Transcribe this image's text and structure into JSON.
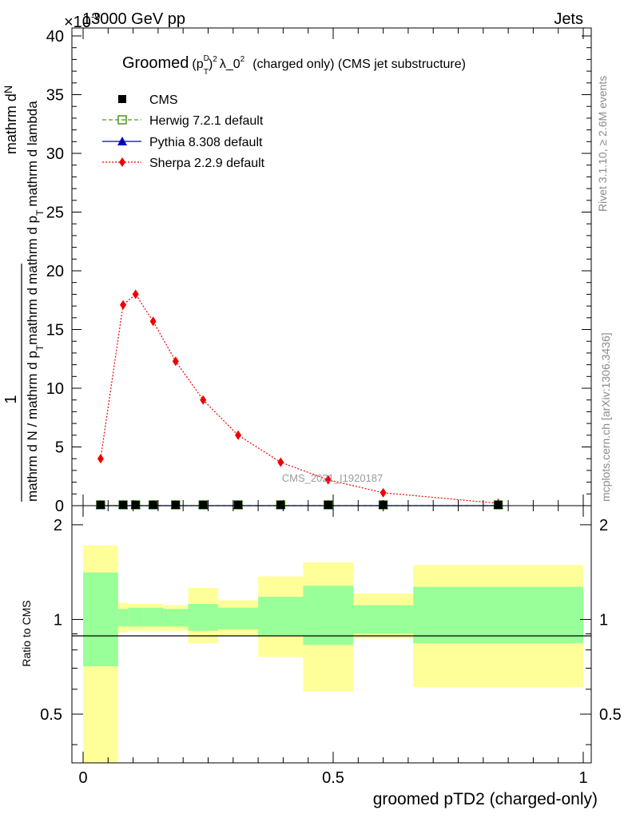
{
  "header": {
    "left": "13000 GeV pp",
    "right": "Jets"
  },
  "side_labels": {
    "rivet": "Rivet 3.1.10, ≥ 2.6M events",
    "mcplots": "mcplots.cern.ch [arXiv:1306.3436]"
  },
  "watermark": "CMS_2021_I1920187",
  "top_panel": {
    "title": "Groomed",
    "title_formula": "λ_0",
    "title_suffix": "(charged only) (CMS jet substructure)",
    "ylabel_numerator_1": "1",
    "ylabel_numerator_2": "mathrm d",
    "ylabel_numerator_N": "N",
    "ylabel_den_1": "mathrm d N / mathrm d p",
    "ylabel_den_2": "mathrm d p",
    "ylabel_den_3": "mathrm d lambda",
    "ylabel_den_sub": "T",
    "ylabel_den_mid": "mathrm d",
    "y_multiplier": "×10",
    "y_multiplier_exp": "-9",
    "yticks": [
      "0",
      "5",
      "10",
      "15",
      "20",
      "25",
      "30",
      "35",
      "40"
    ]
  },
  "legend": [
    {
      "label": "CMS"
    },
    {
      "label": "Herwig 7.2.1 default"
    },
    {
      "label": "Pythia 8.308 default"
    },
    {
      "label": "Sherpa 2.2.9 default"
    }
  ],
  "ratio_panel": {
    "ylabel": "Ratio to CMS",
    "yticks": [
      "0.5",
      "1",
      "2"
    ]
  },
  "xaxis": {
    "label": "groomed pTD2 (charged-only)",
    "ticks": [
      "0",
      "0.5",
      "1"
    ]
  },
  "chart_data": {
    "type": "line",
    "xlim": [
      0,
      1
    ],
    "top_ylim": [
      0,
      40
    ],
    "ratio_ylim": [
      0.35,
      2.3
    ],
    "ratio_scale": "log",
    "bins": [
      0,
      0.07,
      0.09,
      0.12,
      0.16,
      0.21,
      0.27,
      0.35,
      0.44,
      0.54,
      0.66,
      1.0
    ],
    "x": [
      0.035,
      0.08,
      0.105,
      0.14,
      0.185,
      0.24,
      0.31,
      0.395,
      0.49,
      0.6,
      0.83
    ],
    "series": [
      {
        "name": "CMS",
        "color": "#000000",
        "marker": "square",
        "values": [
          0,
          0,
          0,
          0,
          0,
          0,
          0,
          0,
          0,
          0,
          0
        ]
      },
      {
        "name": "Herwig 7.2.1 default",
        "color": "#4a9a18",
        "marker": "open-square",
        "line": "dashed",
        "values": [
          0,
          0,
          0,
          0,
          0,
          0,
          0,
          0,
          0,
          0,
          0
        ]
      },
      {
        "name": "Pythia 8.308 default",
        "color": "#0000cc",
        "marker": "triangle",
        "line": "solid",
        "values": [
          0,
          0,
          0,
          0,
          0,
          0,
          0,
          0,
          0,
          0,
          0
        ]
      },
      {
        "name": "Sherpa 2.2.9 default",
        "color": "#ee0000",
        "marker": "diamond",
        "line": "dotted",
        "values": [
          4.0,
          17.1,
          18.0,
          15.7,
          12.3,
          9.0,
          6.0,
          3.7,
          2.2,
          1.1,
          0.2
        ]
      }
    ],
    "ratio_bands": {
      "stat": {
        "color": "#99ff99",
        "lo": [
          0.71,
          0.95,
          0.95,
          0.95,
          0.95,
          0.92,
          0.93,
          0.89,
          0.83,
          0.9,
          0.84
        ],
        "hi": [
          1.41,
          1.08,
          1.09,
          1.09,
          1.08,
          1.12,
          1.09,
          1.18,
          1.28,
          1.11,
          1.27
        ]
      },
      "total": {
        "color": "#ffff99",
        "lo": [
          0.35,
          0.91,
          0.92,
          0.92,
          0.92,
          0.84,
          0.89,
          0.76,
          0.59,
          0.87,
          0.61
        ],
        "hi": [
          1.72,
          1.13,
          1.12,
          1.12,
          1.11,
          1.26,
          1.15,
          1.37,
          1.52,
          1.21,
          1.49
        ]
      }
    }
  }
}
